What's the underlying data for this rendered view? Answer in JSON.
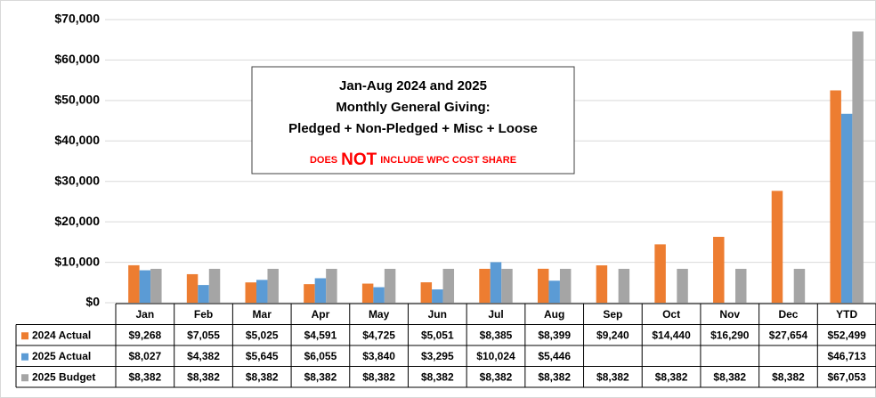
{
  "chart_data": {
    "type": "bar",
    "title": [
      "Jan-Aug  2024 and 2025",
      "Monthly General Giving:",
      "Pledged + Non-Pledged + Misc + Loose"
    ],
    "note": [
      "DOES",
      "NOT",
      "INCLUDE WPC COST SHARE"
    ],
    "categories": [
      "Jan",
      "Feb",
      "Mar",
      "Apr",
      "May",
      "Jun",
      "Jul",
      "Aug",
      "Sep",
      "Oct",
      "Nov",
      "Dec",
      "YTD"
    ],
    "series": [
      {
        "name": "2024 Actual",
        "color": "#ed7d31",
        "values": [
          9268,
          7055,
          5025,
          4591,
          4725,
          5051,
          8385,
          8399,
          9240,
          14440,
          16290,
          27654,
          52499
        ],
        "value_labels": [
          "$9,268",
          "$7,055",
          "$5,025",
          "$4,591",
          "$4,725",
          "$5,051",
          "$8,385",
          "$8,399",
          "$9,240",
          "$14,440",
          "$16,290",
          "$27,654",
          "$52,499"
        ]
      },
      {
        "name": "2025 Actual",
        "color": "#5b9bd5",
        "values": [
          8027,
          4382,
          5645,
          6055,
          3840,
          3295,
          10024,
          5446,
          null,
          null,
          null,
          null,
          46713
        ],
        "value_labels": [
          "$8,027",
          "$4,382",
          "$5,645",
          "$6,055",
          "$3,840",
          "$3,295",
          "$10,024",
          "$5,446",
          null,
          null,
          null,
          null,
          "$46,713"
        ]
      },
      {
        "name": "2025 Budget",
        "color": "#a5a5a5",
        "values": [
          8382,
          8382,
          8382,
          8382,
          8382,
          8382,
          8382,
          8382,
          8382,
          8382,
          8382,
          8382,
          67053
        ],
        "value_labels": [
          "$8,382",
          "$8,382",
          "$8,382",
          "$8,382",
          "$8,382",
          "$8,382",
          "$8,382",
          "$8,382",
          "$8,382",
          "$8,382",
          "$8,382",
          "$8,382",
          "$67,053"
        ]
      }
    ],
    "ylim": [
      0,
      70000
    ],
    "yticks": [
      {
        "value": 0,
        "label": "$0"
      },
      {
        "value": 10000,
        "label": "$10,000"
      },
      {
        "value": 20000,
        "label": "$20,000"
      },
      {
        "value": 30000,
        "label": "$30,000"
      },
      {
        "value": 40000,
        "label": "$40,000"
      },
      {
        "value": 50000,
        "label": "$50,000"
      },
      {
        "value": 60000,
        "label": "$60,000"
      },
      {
        "value": 70000,
        "label": "$70,000"
      }
    ],
    "grid": true
  }
}
